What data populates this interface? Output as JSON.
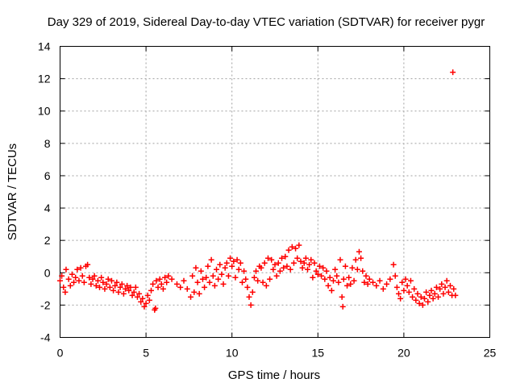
{
  "chart_data": {
    "type": "scatter",
    "title": "Day 329 of 2019, Sidereal Day-to-day VTEC variation (SDTVAR) for receiver pygr",
    "xlabel": "GPS time / hours",
    "ylabel": "SDTVAR / TECUs",
    "xlim": [
      0,
      25
    ],
    "ylim": [
      -4,
      14
    ],
    "xticks": [
      0,
      5,
      10,
      15,
      20,
      25
    ],
    "yticks": [
      -4,
      -2,
      0,
      2,
      4,
      6,
      8,
      10,
      12,
      14
    ],
    "xtick_labels": [
      "0",
      "5",
      "10",
      "15",
      "20",
      "25"
    ],
    "ytick_labels": [
      "-4",
      "-2",
      "0",
      "2",
      "4",
      "6",
      "8",
      "10",
      "12",
      "14"
    ],
    "grid": true,
    "marker": "+",
    "color": "#ff0000",
    "series": [
      {
        "name": "SDTVAR",
        "points": [
          [
            0.0,
            -0.5
          ],
          [
            0.1,
            -0.2
          ],
          [
            0.2,
            -0.9
          ],
          [
            0.3,
            -1.2
          ],
          [
            0.35,
            0.2
          ],
          [
            0.5,
            -0.4
          ],
          [
            0.6,
            -0.8
          ],
          [
            0.7,
            -0.1
          ],
          [
            0.8,
            -0.6
          ],
          [
            0.9,
            -0.3
          ],
          [
            1.0,
            0.2
          ],
          [
            1.1,
            -0.5
          ],
          [
            1.2,
            0.3
          ],
          [
            1.3,
            -0.2
          ],
          [
            1.4,
            -0.6
          ],
          [
            1.5,
            0.4
          ],
          [
            1.6,
            0.5
          ],
          [
            1.7,
            -0.3
          ],
          [
            1.8,
            -0.7
          ],
          [
            1.9,
            -0.4
          ],
          [
            2.0,
            -0.2
          ],
          [
            2.1,
            -0.8
          ],
          [
            2.2,
            -0.5
          ],
          [
            2.3,
            -0.9
          ],
          [
            2.4,
            -0.3
          ],
          [
            2.5,
            -0.6
          ],
          [
            2.6,
            -1.0
          ],
          [
            2.7,
            -0.7
          ],
          [
            2.8,
            -0.4
          ],
          [
            2.9,
            -0.9
          ],
          [
            3.0,
            -0.5
          ],
          [
            3.1,
            -1.1
          ],
          [
            3.2,
            -0.8
          ],
          [
            3.3,
            -0.6
          ],
          [
            3.4,
            -1.2
          ],
          [
            3.5,
            -0.9
          ],
          [
            3.6,
            -0.7
          ],
          [
            3.7,
            -1.3
          ],
          [
            3.8,
            -1.0
          ],
          [
            3.9,
            -0.8
          ],
          [
            4.0,
            -1.1
          ],
          [
            4.1,
            -0.9
          ],
          [
            4.2,
            -1.4
          ],
          [
            4.3,
            -1.2
          ],
          [
            4.4,
            -0.9
          ],
          [
            4.5,
            -1.5
          ],
          [
            4.6,
            -1.3
          ],
          [
            4.7,
            -1.8
          ],
          [
            4.8,
            -1.6
          ],
          [
            4.9,
            -2.1
          ],
          [
            5.0,
            -1.9
          ],
          [
            5.1,
            -1.4
          ],
          [
            5.2,
            -1.7
          ],
          [
            5.3,
            -1.1
          ],
          [
            5.4,
            -0.7
          ],
          [
            5.5,
            -2.3
          ],
          [
            5.55,
            -2.2
          ],
          [
            5.6,
            -0.5
          ],
          [
            5.7,
            -0.9
          ],
          [
            5.8,
            -0.4
          ],
          [
            5.9,
            -0.7
          ],
          [
            6.0,
            -1.0
          ],
          [
            6.1,
            -0.3
          ],
          [
            6.2,
            -0.6
          ],
          [
            6.3,
            -0.2
          ],
          [
            6.5,
            -0.4
          ],
          [
            6.8,
            -0.7
          ],
          [
            7.0,
            -0.9
          ],
          [
            7.2,
            -0.5
          ],
          [
            7.4,
            -1.0
          ],
          [
            7.6,
            -1.5
          ],
          [
            7.7,
            -0.2
          ],
          [
            7.8,
            -1.2
          ],
          [
            7.9,
            0.3
          ],
          [
            8.0,
            -0.6
          ],
          [
            8.1,
            -1.3
          ],
          [
            8.2,
            0.1
          ],
          [
            8.3,
            -0.4
          ],
          [
            8.4,
            -0.9
          ],
          [
            8.5,
            -0.3
          ],
          [
            8.6,
            0.4
          ],
          [
            8.7,
            -0.6
          ],
          [
            8.8,
            0.8
          ],
          [
            8.9,
            -0.2
          ],
          [
            9.0,
            -0.8
          ],
          [
            9.1,
            0.2
          ],
          [
            9.2,
            -0.4
          ],
          [
            9.3,
            0.5
          ],
          [
            9.4,
            -0.1
          ],
          [
            9.5,
            -0.7
          ],
          [
            9.6,
            0.3
          ],
          [
            9.7,
            0.6
          ],
          [
            9.8,
            -0.2
          ],
          [
            9.9,
            0.9
          ],
          [
            10.0,
            0.4
          ],
          [
            10.1,
            0.7
          ],
          [
            10.2,
            -0.3
          ],
          [
            10.3,
            0.8
          ],
          [
            10.4,
            0.2
          ],
          [
            10.5,
            0.6
          ],
          [
            10.6,
            -0.6
          ],
          [
            10.7,
            0.1
          ],
          [
            10.8,
            -0.4
          ],
          [
            10.9,
            -0.9
          ],
          [
            11.0,
            -1.5
          ],
          [
            11.1,
            -2.0
          ],
          [
            11.2,
            -1.2
          ],
          [
            11.3,
            -0.3
          ],
          [
            11.4,
            0.1
          ],
          [
            11.5,
            -0.5
          ],
          [
            11.6,
            0.4
          ],
          [
            11.7,
            0.3
          ],
          [
            11.8,
            -0.6
          ],
          [
            11.9,
            0.6
          ],
          [
            12.0,
            -0.8
          ],
          [
            12.1,
            0.9
          ],
          [
            12.2,
            -0.4
          ],
          [
            12.3,
            0.8
          ],
          [
            12.4,
            0.2
          ],
          [
            12.5,
            0.5
          ],
          [
            12.6,
            -0.2
          ],
          [
            12.7,
            0.6
          ],
          [
            12.8,
            0.1
          ],
          [
            12.9,
            0.9
          ],
          [
            13.0,
            0.3
          ],
          [
            13.1,
            1.0
          ],
          [
            13.2,
            0.4
          ],
          [
            13.3,
            1.4
          ],
          [
            13.4,
            0.2
          ],
          [
            13.5,
            1.6
          ],
          [
            13.6,
            0.6
          ],
          [
            13.7,
            1.5
          ],
          [
            13.8,
            0.9
          ],
          [
            13.9,
            1.7
          ],
          [
            14.0,
            0.7
          ],
          [
            14.1,
            0.3
          ],
          [
            14.2,
            0.6
          ],
          [
            14.3,
            0.9
          ],
          [
            14.4,
            0.2
          ],
          [
            14.5,
            0.5
          ],
          [
            14.6,
            0.8
          ],
          [
            14.7,
            -0.3
          ],
          [
            14.8,
            0.6
          ],
          [
            14.9,
            0.1
          ],
          [
            15.0,
            -0.1
          ],
          [
            15.1,
            0.4
          ],
          [
            15.2,
            -0.2
          ],
          [
            15.3,
            0.3
          ],
          [
            15.4,
            -0.4
          ],
          [
            15.5,
            0.1
          ],
          [
            15.6,
            -0.8
          ],
          [
            15.7,
            -0.3
          ],
          [
            15.8,
            -1.1
          ],
          [
            15.9,
            -0.5
          ],
          [
            16.0,
            0.2
          ],
          [
            16.1,
            -0.2
          ],
          [
            16.2,
            -0.6
          ],
          [
            16.3,
            0.8
          ],
          [
            16.4,
            -1.5
          ],
          [
            16.45,
            -2.1
          ],
          [
            16.5,
            -0.4
          ],
          [
            16.6,
            0.4
          ],
          [
            16.7,
            -0.8
          ],
          [
            16.8,
            -0.3
          ],
          [
            16.9,
            -0.7
          ],
          [
            17.0,
            0.3
          ],
          [
            17.1,
            -0.5
          ],
          [
            17.2,
            0.8
          ],
          [
            17.3,
            0.2
          ],
          [
            17.4,
            1.3
          ],
          [
            17.5,
            0.9
          ],
          [
            17.6,
            0.1
          ],
          [
            17.7,
            -0.6
          ],
          [
            17.8,
            -0.2
          ],
          [
            17.9,
            -0.7
          ],
          [
            18.0,
            -0.4
          ],
          [
            18.2,
            -0.6
          ],
          [
            18.4,
            -0.8
          ],
          [
            18.6,
            -0.5
          ],
          [
            18.8,
            -1.0
          ],
          [
            19.0,
            -0.7
          ],
          [
            19.2,
            -0.4
          ],
          [
            19.4,
            0.5
          ],
          [
            19.5,
            -0.2
          ],
          [
            19.6,
            -0.9
          ],
          [
            19.7,
            -1.3
          ],
          [
            19.8,
            -1.6
          ],
          [
            19.9,
            -0.6
          ],
          [
            20.0,
            -1.1
          ],
          [
            20.1,
            -0.4
          ],
          [
            20.2,
            -0.8
          ],
          [
            20.3,
            -1.2
          ],
          [
            20.4,
            -0.5
          ],
          [
            20.5,
            -1.5
          ],
          [
            20.6,
            -1.0
          ],
          [
            20.7,
            -1.7
          ],
          [
            20.8,
            -1.3
          ],
          [
            20.9,
            -1.9
          ],
          [
            21.0,
            -1.5
          ],
          [
            21.1,
            -2.0
          ],
          [
            21.2,
            -1.6
          ],
          [
            21.3,
            -1.2
          ],
          [
            21.4,
            -1.8
          ],
          [
            21.5,
            -1.4
          ],
          [
            21.6,
            -1.1
          ],
          [
            21.7,
            -1.6
          ],
          [
            21.8,
            -1.3
          ],
          [
            21.9,
            -0.9
          ],
          [
            22.0,
            -1.5
          ],
          [
            22.1,
            -1.0
          ],
          [
            22.2,
            -0.7
          ],
          [
            22.3,
            -1.3
          ],
          [
            22.4,
            -0.9
          ],
          [
            22.5,
            -0.5
          ],
          [
            22.6,
            -1.2
          ],
          [
            22.7,
            -0.8
          ],
          [
            22.8,
            -1.4
          ],
          [
            22.9,
            -1.0
          ],
          [
            23.0,
            -1.4
          ],
          [
            22.85,
            12.4
          ]
        ]
      }
    ]
  }
}
